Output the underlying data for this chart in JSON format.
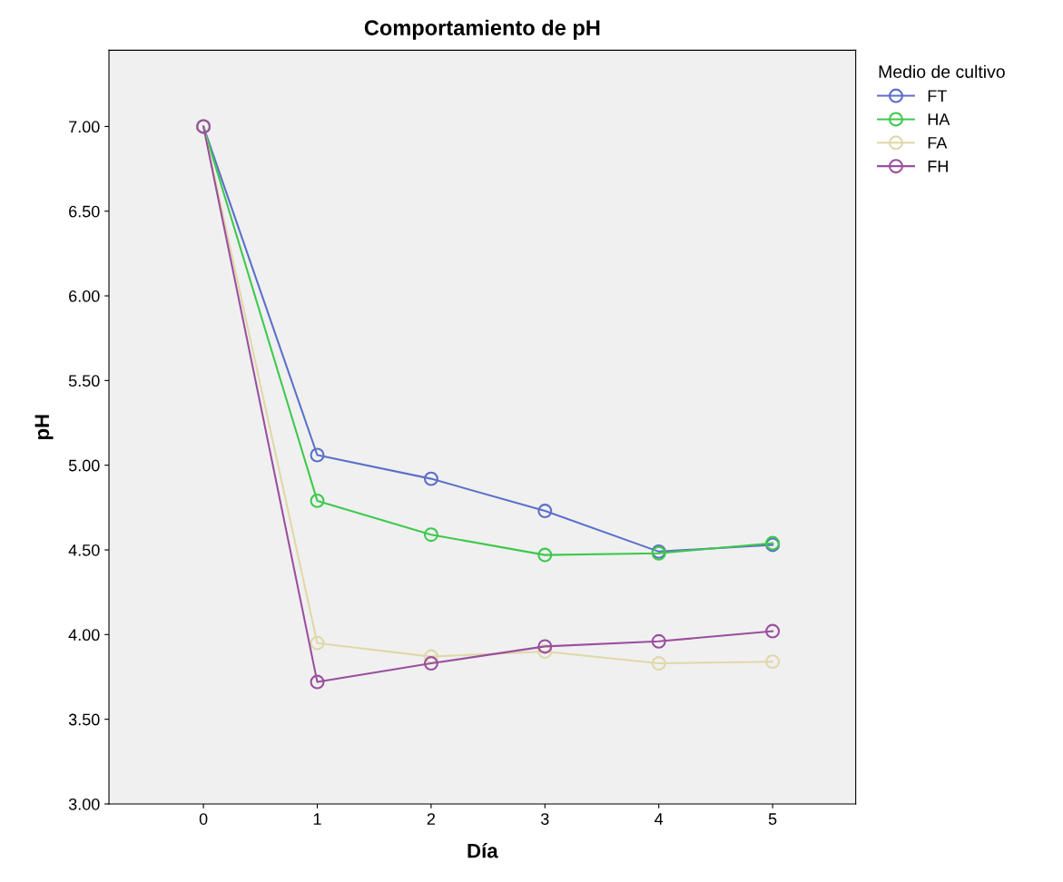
{
  "chart_data": {
    "type": "line",
    "title": "Comportamiento de pH",
    "xlabel": "Día",
    "ylabel": "pH",
    "legend_title": "Medio de cultivo",
    "legend": "top right",
    "marker": "circle",
    "line_style": "solid",
    "grid": false,
    "x": [
      0,
      1,
      2,
      3,
      4,
      5
    ],
    "xlim": [
      -0.83,
      5.73
    ],
    "xticks": [
      0,
      1,
      2,
      3,
      4,
      5
    ],
    "ylim": [
      3,
      7.45
    ],
    "yticks": [
      {
        "value": 3,
        "label": "3.00"
      },
      {
        "value": 3.5,
        "label": "3.50"
      },
      {
        "value": 4,
        "label": "4.00"
      },
      {
        "value": 4.5,
        "label": "4.50"
      },
      {
        "value": 5,
        "label": "5.00"
      },
      {
        "value": 5.5,
        "label": "5.50"
      },
      {
        "value": 6,
        "label": "6.00"
      },
      {
        "value": 6.5,
        "label": "6.50"
      },
      {
        "value": 7,
        "label": "7.00"
      }
    ],
    "series": [
      {
        "name": "FT",
        "color": "#5b6fc9",
        "values": [
          7.0,
          5.06,
          4.92,
          4.73,
          4.49,
          4.53
        ]
      },
      {
        "name": "HA",
        "color": "#3dc94d",
        "values": [
          7.0,
          4.79,
          4.59,
          4.47,
          4.48,
          4.54
        ]
      },
      {
        "name": "FA",
        "color": "#e0d8a8",
        "values": [
          7.0,
          3.95,
          3.87,
          3.9,
          3.83,
          3.84
        ]
      },
      {
        "name": "FH",
        "color": "#9a4f9e",
        "values": [
          7.0,
          3.72,
          3.83,
          3.93,
          3.96,
          4.02
        ]
      }
    ]
  }
}
